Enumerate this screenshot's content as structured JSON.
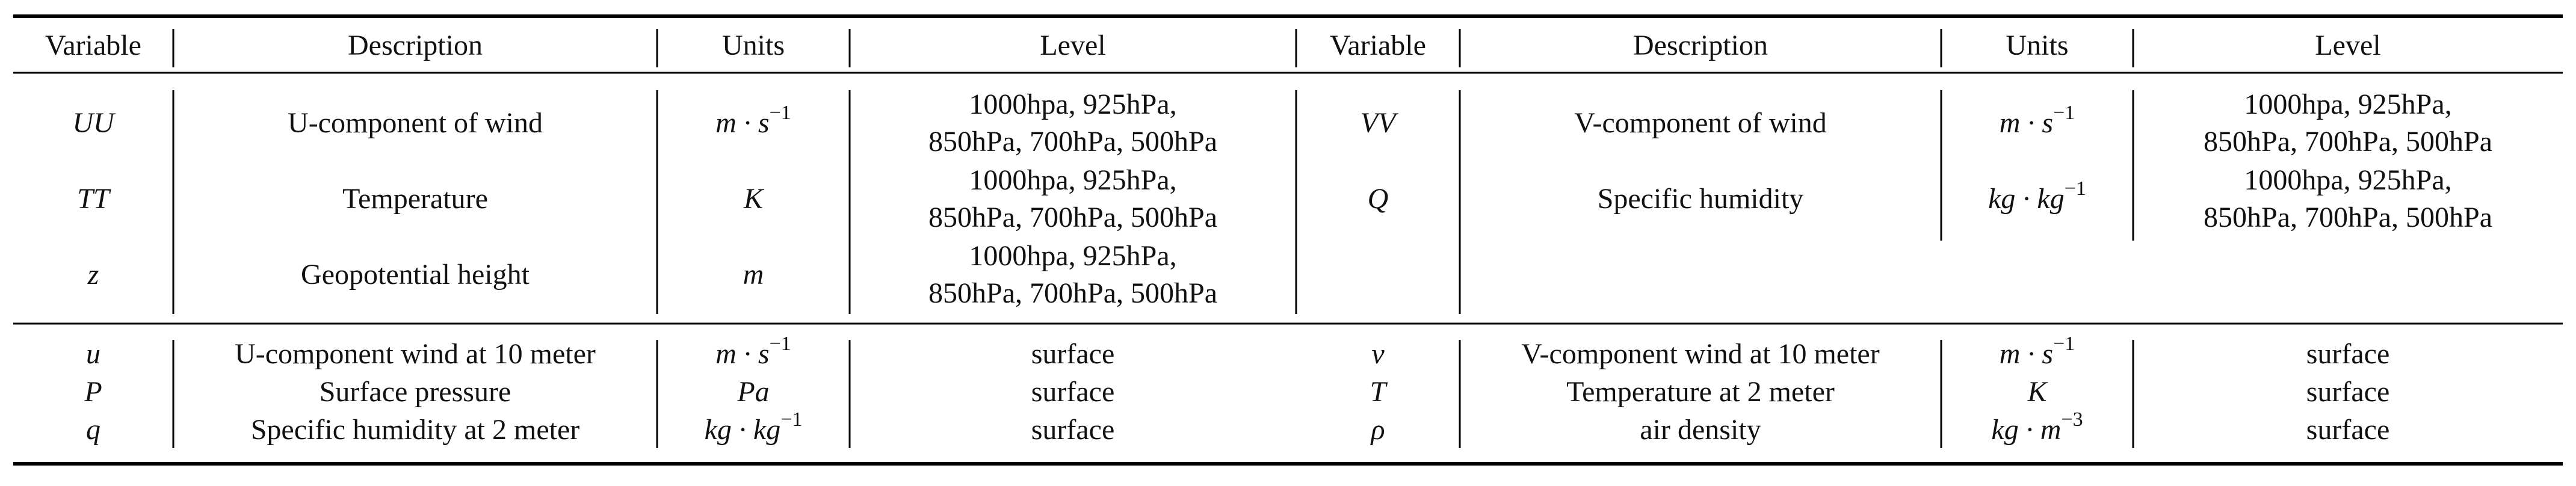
{
  "table": {
    "header": [
      "Variable",
      "Description",
      "Units",
      "Level",
      "Variable",
      "Description",
      "Units",
      "Level"
    ],
    "groups": [
      [
        [
          "UU",
          "U-component of wind",
          {
            "text": "m · s",
            "sup": "−1"
          },
          [
            "1000hpa, 925hPa,",
            "850hPa, 700hPa, 500hPa"
          ],
          "VV",
          "V-component of wind",
          {
            "text": "m · s",
            "sup": "−1"
          },
          [
            "1000hpa, 925hPa,",
            "850hPa, 700hPa, 500hPa"
          ]
        ],
        [
          "TT",
          "Temperature",
          "K",
          [
            "1000hpa, 925hPa,",
            "850hPa, 700hPa, 500hPa"
          ],
          "Q",
          "Specific humidity",
          {
            "text": "kg · kg",
            "sup": "−1"
          },
          [
            "1000hpa, 925hPa,",
            "850hPa, 700hPa, 500hPa"
          ]
        ],
        [
          "z",
          "Geopotential height",
          "m",
          [
            "1000hpa, 925hPa,",
            "850hPa, 700hPa, 500hPa"
          ]
        ]
      ],
      [
        [
          "u",
          "U-component wind at 10 meter",
          {
            "text": "m · s",
            "sup": "−1"
          },
          "surface",
          "v",
          "V-component wind at 10 meter",
          {
            "text": "m · s",
            "sup": "−1"
          },
          "surface"
        ],
        [
          "P",
          "Surface pressure",
          "Pa",
          "surface",
          "T",
          "Temperature at 2 meter",
          "K",
          "surface"
        ],
        [
          "q",
          "Specific humidity at 2 meter",
          {
            "text": "kg · kg",
            "sup": "−1"
          },
          "surface",
          "ρ",
          "air density",
          {
            "text": "kg · m",
            "sup": "−3"
          },
          "surface"
        ]
      ]
    ]
  }
}
